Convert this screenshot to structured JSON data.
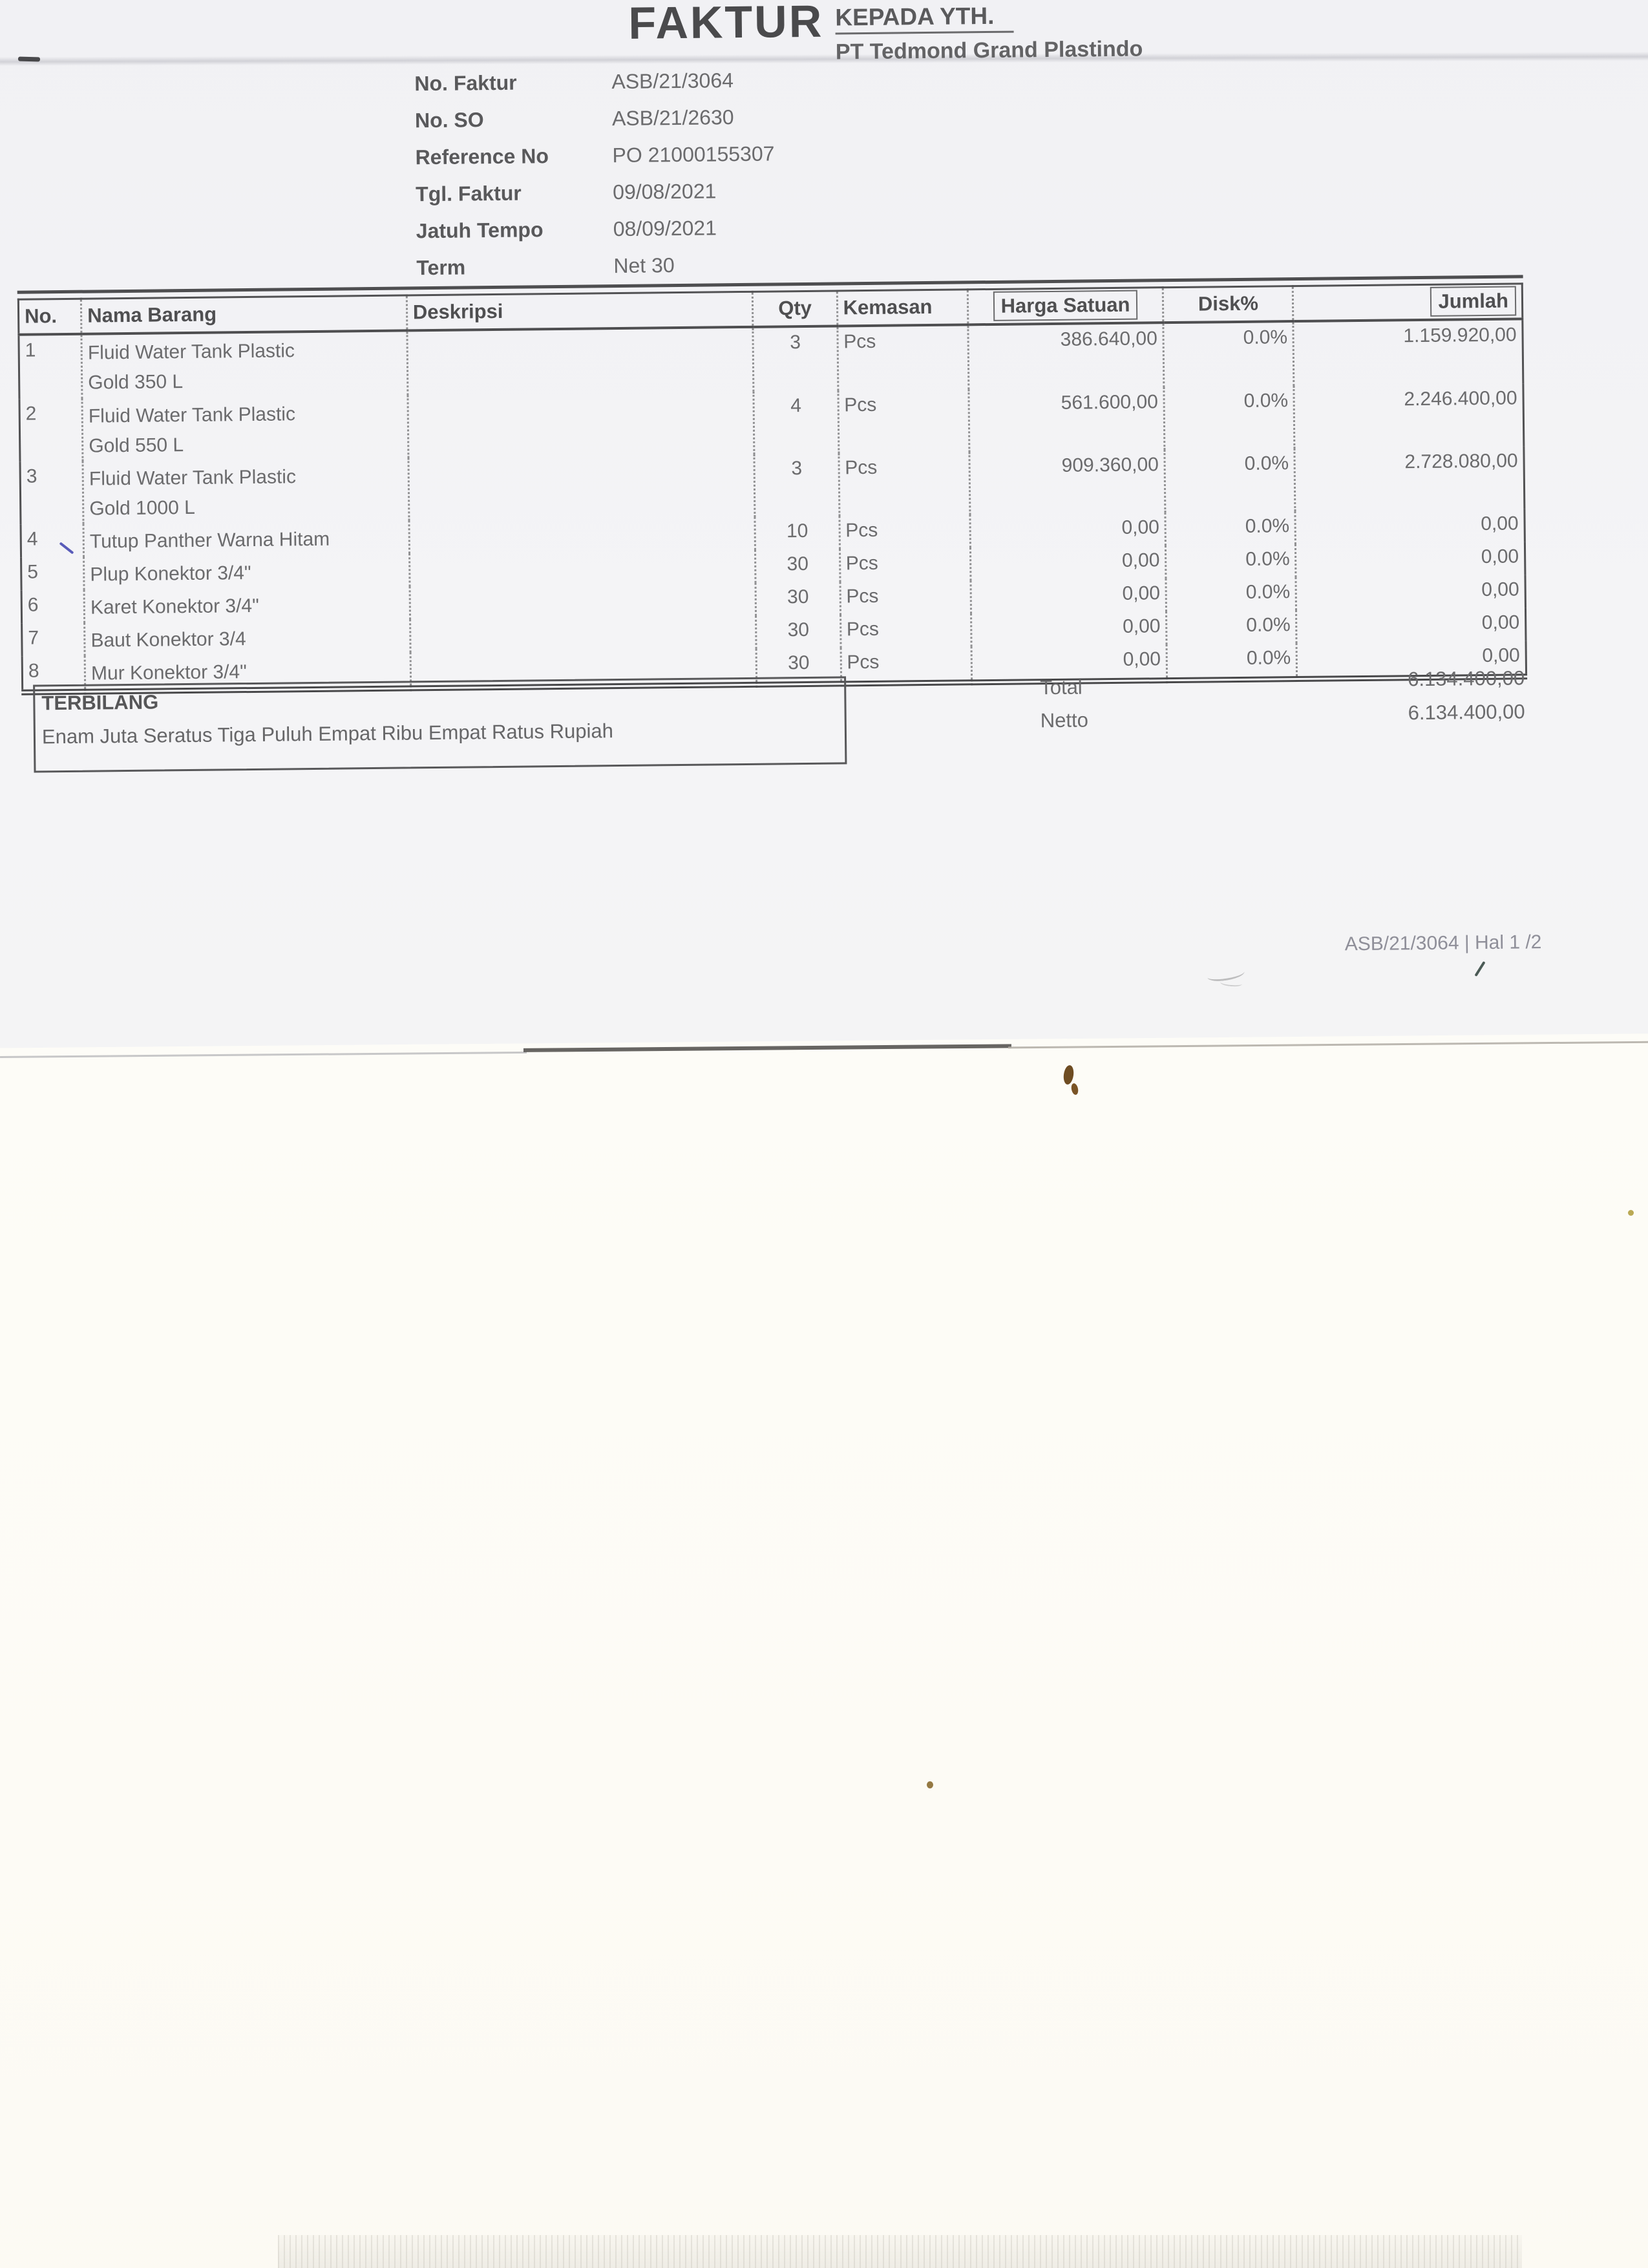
{
  "colors": {
    "ink": "#6b6b6d",
    "ink_dark": "#4a4a4c",
    "paper": "#f4f4f6",
    "backing": "#fdfbf5"
  },
  "header": {
    "title": "FAKTUR",
    "recipient_label": "KEPADA YTH.",
    "recipient_name": "PT Tedmond Grand Plastindo"
  },
  "invoice_info": {
    "fields": [
      {
        "label": "No. Faktur",
        "value": "ASB/21/3064"
      },
      {
        "label": "No. SO",
        "value": "ASB/21/2630"
      },
      {
        "label": "Reference No",
        "value": "PO 21000155307"
      },
      {
        "label": "Tgl. Faktur",
        "value": "09/08/2021"
      },
      {
        "label": "Jatuh Tempo",
        "value": "08/09/2021"
      },
      {
        "label": "Term",
        "value": "Net 30"
      }
    ]
  },
  "table": {
    "columns": [
      "No.",
      "Nama Barang",
      "Deskripsi",
      "Qty",
      "Kemasan",
      "Harga Satuan",
      "Disk%",
      "Jumlah"
    ],
    "rows": [
      {
        "no": "1",
        "name": "Fluid Water Tank Plastic\nGold 350 L",
        "desc": "",
        "qty": "3",
        "unit": "Pcs",
        "price": "386.640,00",
        "disc": "0.0%",
        "amount": "1.159.920,00"
      },
      {
        "no": "2",
        "name": "Fluid Water Tank Plastic\nGold 550 L",
        "desc": "",
        "qty": "4",
        "unit": "Pcs",
        "price": "561.600,00",
        "disc": "0.0%",
        "amount": "2.246.400,00"
      },
      {
        "no": "3",
        "name": "Fluid Water Tank Plastic\nGold 1000 L",
        "desc": "",
        "qty": "3",
        "unit": "Pcs",
        "price": "909.360,00",
        "disc": "0.0%",
        "amount": "2.728.080,00"
      },
      {
        "no": "4",
        "name": "Tutup Panther Warna Hitam",
        "desc": "",
        "qty": "10",
        "unit": "Pcs",
        "price": "0,00",
        "disc": "0.0%",
        "amount": "0,00"
      },
      {
        "no": "5",
        "name": "Plup Konektor 3/4\"",
        "desc": "",
        "qty": "30",
        "unit": "Pcs",
        "price": "0,00",
        "disc": "0.0%",
        "amount": "0,00"
      },
      {
        "no": "6",
        "name": "Karet Konektor 3/4\"",
        "desc": "",
        "qty": "30",
        "unit": "Pcs",
        "price": "0,00",
        "disc": "0.0%",
        "amount": "0,00"
      },
      {
        "no": "7",
        "name": "Baut Konektor 3/4",
        "desc": "",
        "qty": "30",
        "unit": "Pcs",
        "price": "0,00",
        "disc": "0.0%",
        "amount": "0,00"
      },
      {
        "no": "8",
        "name": "Mur Konektor 3/4\"",
        "desc": "",
        "qty": "30",
        "unit": "Pcs",
        "price": "0,00",
        "disc": "0.0%",
        "amount": "0,00"
      }
    ],
    "summary": {
      "total_label": "Total",
      "total_value": "6.134.400,00",
      "netto_label": "Netto",
      "netto_value": "6.134.400,00"
    }
  },
  "terbilang": {
    "label": "TERBILANG",
    "text": "Enam Juta Seratus Tiga Puluh Empat Ribu Empat Ratus Rupiah"
  },
  "footer": {
    "text": "ASB/21/3064 | Hal 1 /2"
  }
}
